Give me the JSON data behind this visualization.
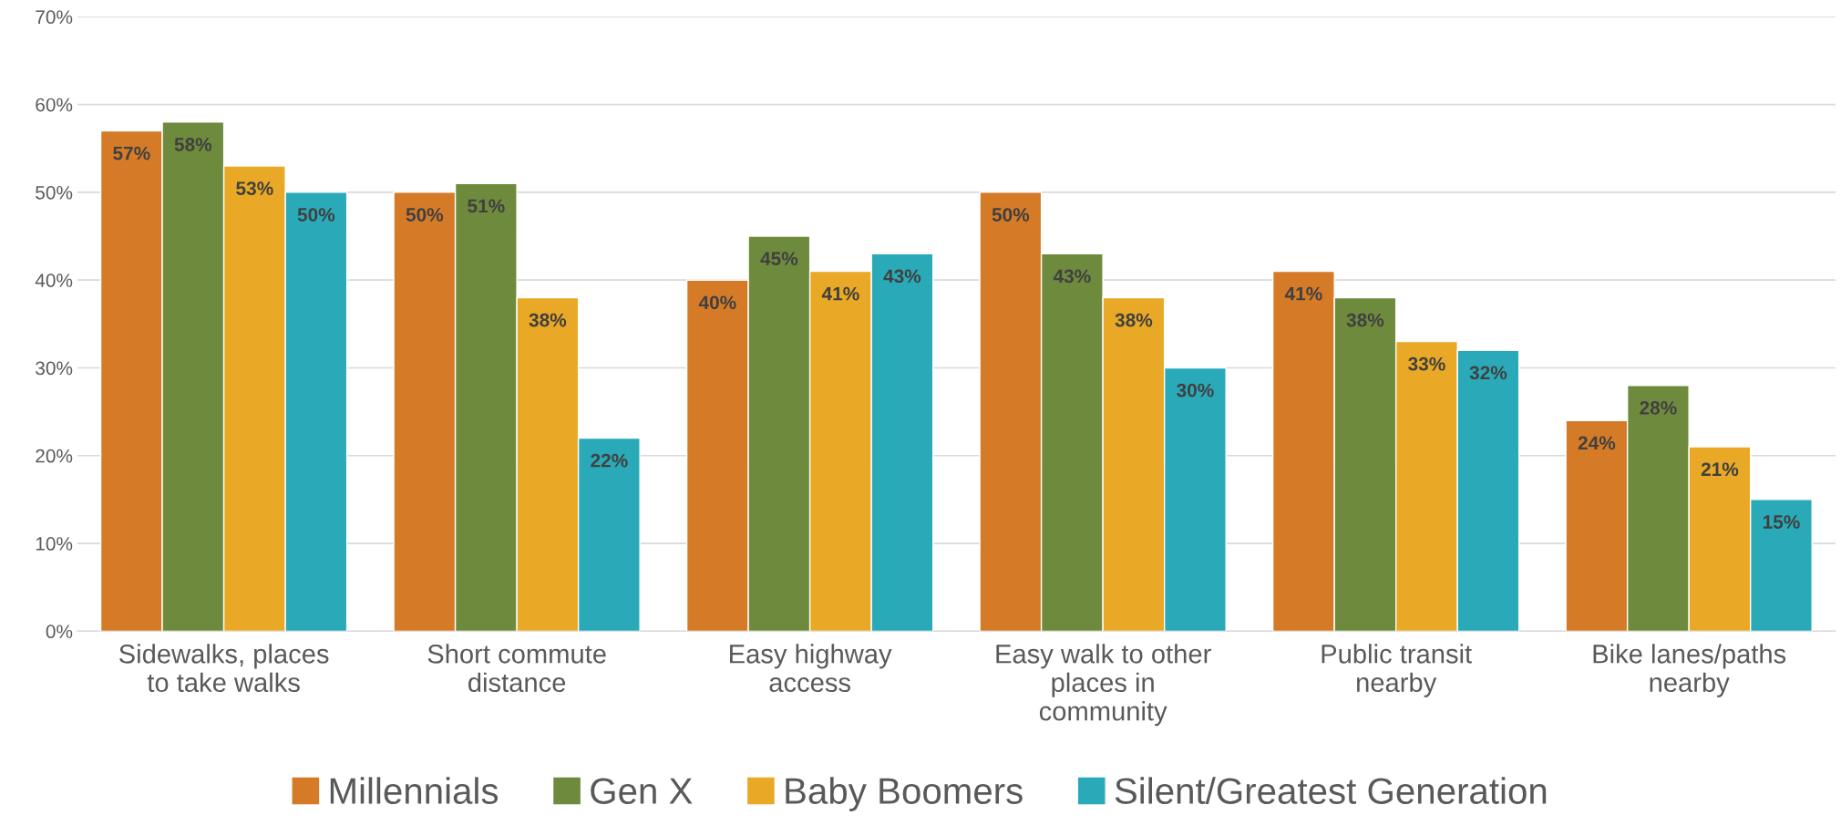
{
  "chart_data": {
    "type": "bar",
    "categories": [
      "Sidewalks, places\nto take walks",
      "Short commute\ndistance",
      "Easy highway\naccess",
      "Easy walk to other\nplaces in\ncommunity",
      "Public transit\nnearby",
      "Bike lanes/paths\nnearby"
    ],
    "series": [
      {
        "name": "Millennials",
        "color": "#d57b27",
        "values": [
          57,
          50,
          40,
          50,
          41,
          24
        ],
        "value_labels": [
          "57%",
          "50%",
          "40%",
          "50%",
          "41%",
          "24%"
        ]
      },
      {
        "name": "Gen X",
        "color": "#6e8b3d",
        "values": [
          58,
          51,
          45,
          43,
          38,
          28
        ],
        "value_labels": [
          "58%",
          "51%",
          "45%",
          "43%",
          "38%",
          "28%"
        ]
      },
      {
        "name": "Baby Boomers",
        "color": "#e9a825",
        "values": [
          53,
          38,
          41,
          38,
          33,
          21
        ],
        "value_labels": [
          "53%",
          "38%",
          "41%",
          "38%",
          "33%",
          "21%"
        ]
      },
      {
        "name": "Silent/Greatest Generation",
        "color": "#2aaab8",
        "values": [
          50,
          22,
          43,
          30,
          32,
          15
        ],
        "value_labels": [
          "50%",
          "22%",
          "43%",
          "30%",
          "32%",
          "15%"
        ]
      }
    ],
    "ylim": [
      0,
      70
    ],
    "yticks": [
      {
        "value": 0,
        "label": "0%"
      },
      {
        "value": 10,
        "label": "10%"
      },
      {
        "value": 20,
        "label": "20%"
      },
      {
        "value": 30,
        "label": "30%"
      },
      {
        "value": 40,
        "label": "40%"
      },
      {
        "value": 50,
        "label": "50%"
      },
      {
        "value": 60,
        "label": "60%"
      },
      {
        "value": 70,
        "label": "70%"
      }
    ],
    "grid": "y",
    "legend": "bottom"
  }
}
